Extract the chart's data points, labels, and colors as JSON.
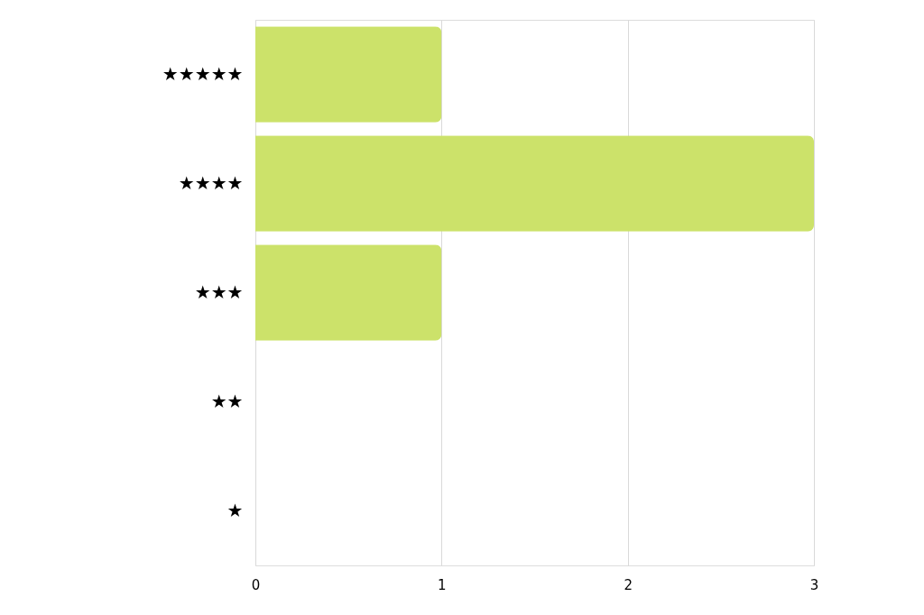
{
  "chart_data": {
    "type": "bar",
    "orientation": "horizontal",
    "categories": [
      "★★★★★",
      "★★★★",
      "★★★",
      "★★",
      "★"
    ],
    "values": [
      1,
      3,
      1,
      0,
      0
    ],
    "color": "#cce26a",
    "xlim": [
      0,
      3
    ],
    "xticks": [
      0,
      1,
      2,
      3
    ],
    "grid": "x"
  }
}
